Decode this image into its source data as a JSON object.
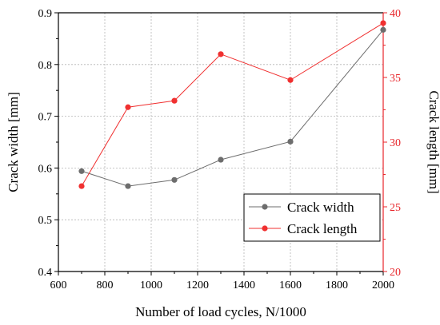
{
  "chart_data": {
    "type": "line",
    "xlabel": "Number of load cycles, N/1000",
    "x_ticks": [
      600,
      800,
      1000,
      1200,
      1400,
      1600,
      1800,
      2000
    ],
    "xlim": [
      600,
      2000
    ],
    "grid": true,
    "legend_position": "bottom-right",
    "axes": {
      "left": {
        "label": "Crack width [mm]",
        "ylim": [
          0.4,
          0.9
        ],
        "ticks": [
          0.4,
          0.5,
          0.6,
          0.7,
          0.8,
          0.9
        ],
        "color": "#000000"
      },
      "right": {
        "label": "Crack length [mm]",
        "ylim": [
          20,
          40
        ],
        "ticks": [
          20,
          25,
          30,
          35,
          40
        ],
        "color": "#e8262b"
      }
    },
    "series": [
      {
        "name": "Crack width",
        "axis": "left",
        "color": "#6d6d6d",
        "x": [
          700,
          900,
          1100,
          1300,
          1600,
          2000
        ],
        "values": [
          0.594,
          0.565,
          0.577,
          0.616,
          0.651,
          0.867
        ]
      },
      {
        "name": "Crack length",
        "axis": "right",
        "color": "#f03030",
        "x": [
          700,
          900,
          1100,
          1300,
          1600,
          2000
        ],
        "values": [
          26.6,
          32.7,
          33.2,
          36.8,
          34.8,
          39.2
        ]
      }
    ]
  }
}
